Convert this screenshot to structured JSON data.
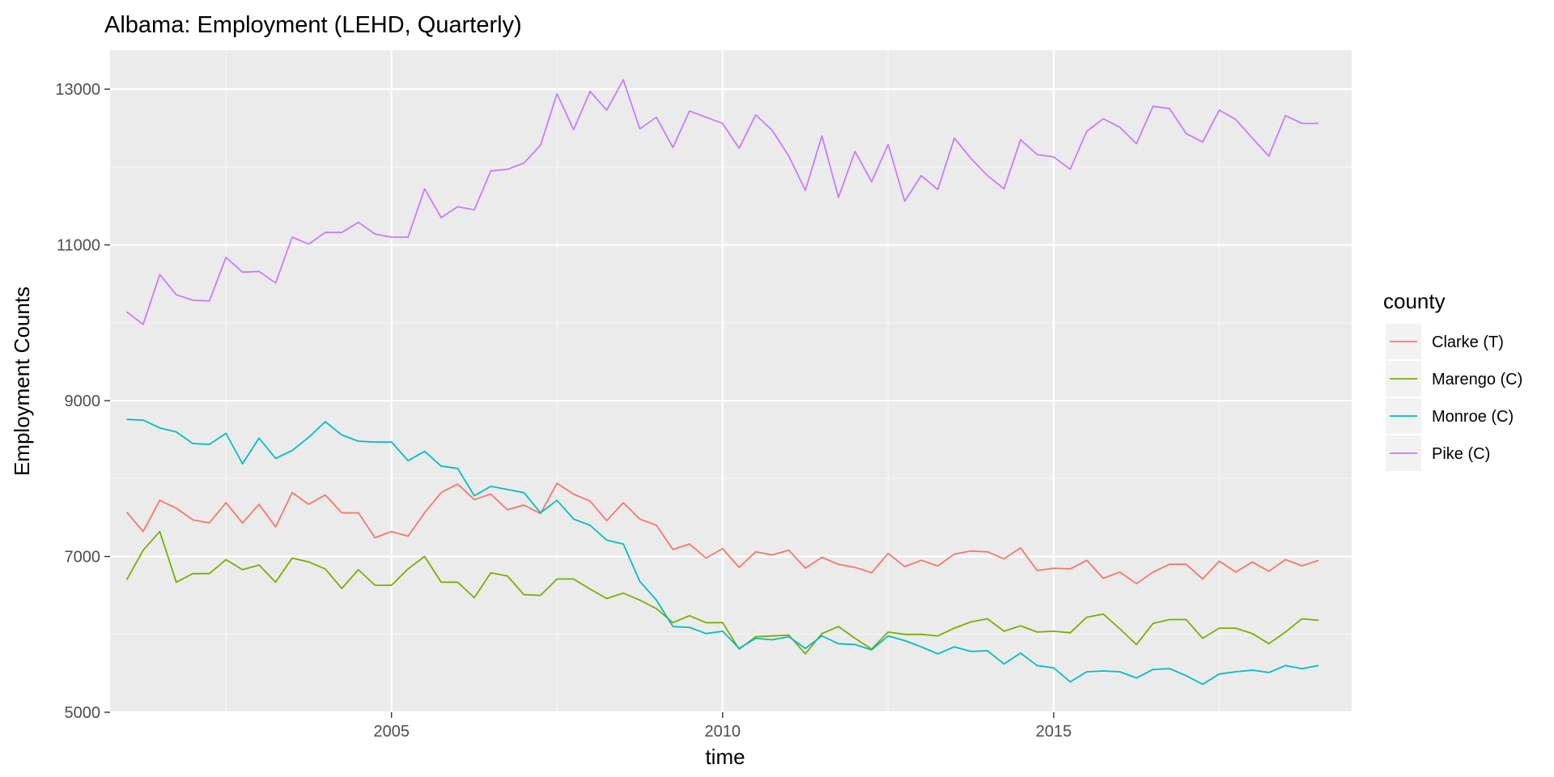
{
  "chart_data": {
    "type": "line",
    "title": "Albama: Employment (LEHD, Quarterly)",
    "xlabel": "time",
    "ylabel": "Employment Counts",
    "xlim": [
      2000.75,
      2019.5
    ],
    "ylim": [
      5000,
      13500
    ],
    "x_ticks": [
      2005,
      2010,
      2015
    ],
    "x_tick_labels": [
      "2005",
      "2010",
      "2015"
    ],
    "y_ticks": [
      5000,
      7000,
      9000,
      11000,
      13000
    ],
    "y_tick_labels": [
      "5000",
      "7000",
      "9000",
      "11000",
      "13000"
    ],
    "grid": true,
    "legend_title": "county",
    "legend_position": "right",
    "x": [
      2001.0,
      2001.25,
      2001.5,
      2001.75,
      2002.0,
      2002.25,
      2002.5,
      2002.75,
      2003.0,
      2003.25,
      2003.5,
      2003.75,
      2004.0,
      2004.25,
      2004.5,
      2004.75,
      2005.0,
      2005.25,
      2005.5,
      2005.75,
      2006.0,
      2006.25,
      2006.5,
      2006.75,
      2007.0,
      2007.25,
      2007.5,
      2007.75,
      2008.0,
      2008.25,
      2008.5,
      2008.75,
      2009.0,
      2009.25,
      2009.5,
      2009.75,
      2010.0,
      2010.25,
      2010.5,
      2010.75,
      2011.0,
      2011.25,
      2011.5,
      2011.75,
      2012.0,
      2012.25,
      2012.5,
      2012.75,
      2013.0,
      2013.25,
      2013.5,
      2013.75,
      2014.0,
      2014.25,
      2014.5,
      2014.75,
      2015.0,
      2015.25,
      2015.5,
      2015.75,
      2016.0,
      2016.25,
      2016.5,
      2016.75,
      2017.0,
      2017.25,
      2017.5,
      2017.75,
      2018.0,
      2018.25,
      2018.5,
      2018.75,
      2019.0
    ],
    "series": [
      {
        "name": "Clarke (T)",
        "color": "#F8766D",
        "values": [
          7570,
          7320,
          7720,
          7620,
          7470,
          7430,
          7690,
          7430,
          7670,
          7380,
          7820,
          7670,
          7790,
          7560,
          7560,
          7240,
          7320,
          7260,
          7560,
          7820,
          7930,
          7730,
          7800,
          7600,
          7660,
          7550,
          7940,
          7800,
          7710,
          7460,
          7690,
          7480,
          7400,
          7090,
          7160,
          6980,
          7100,
          6860,
          7060,
          7020,
          7080,
          6850,
          6990,
          6900,
          6860,
          6790,
          7040,
          6870,
          6950,
          6880,
          7030,
          7070,
          7060,
          6970,
          7110,
          6820,
          6850,
          6840,
          6950,
          6720,
          6800,
          6650,
          6800,
          6900,
          6900,
          6710,
          6940,
          6800,
          6930,
          6810,
          6960,
          6880,
          6950
        ]
      },
      {
        "name": "Marengo (C)",
        "color": "#7CAE00",
        "values": [
          6700,
          7080,
          7320,
          6670,
          6780,
          6780,
          6960,
          6830,
          6890,
          6670,
          6980,
          6930,
          6840,
          6590,
          6830,
          6630,
          6630,
          6840,
          7000,
          6670,
          6670,
          6470,
          6790,
          6750,
          6510,
          6500,
          6710,
          6710,
          6580,
          6460,
          6530,
          6440,
          6330,
          6150,
          6240,
          6150,
          6150,
          5810,
          5970,
          5980,
          5990,
          5750,
          6010,
          6100,
          5950,
          5810,
          6030,
          6000,
          6000,
          5980,
          6080,
          6160,
          6200,
          6040,
          6110,
          6030,
          6040,
          6020,
          6220,
          6260,
          6070,
          5870,
          6140,
          6190,
          6190,
          5950,
          6080,
          6080,
          6010,
          5880,
          6030,
          6200,
          6180
        ]
      },
      {
        "name": "Monroe (C)",
        "color": "#00BFC4",
        "values": [
          8760,
          8750,
          8650,
          8600,
          8450,
          8440,
          8580,
          8190,
          8520,
          8260,
          8360,
          8530,
          8730,
          8560,
          8480,
          8470,
          8470,
          8230,
          8350,
          8160,
          8130,
          7780,
          7900,
          7860,
          7820,
          7560,
          7720,
          7480,
          7400,
          7210,
          7160,
          6680,
          6440,
          6100,
          6090,
          6010,
          6040,
          5820,
          5950,
          5930,
          5970,
          5820,
          5980,
          5880,
          5870,
          5800,
          5980,
          5920,
          5840,
          5750,
          5840,
          5780,
          5790,
          5620,
          5760,
          5600,
          5570,
          5390,
          5520,
          5530,
          5520,
          5440,
          5550,
          5560,
          5470,
          5360,
          5490,
          5520,
          5540,
          5510,
          5600,
          5560,
          5600
        ]
      },
      {
        "name": "Pike (C)",
        "color": "#C77CFF",
        "values": [
          10140,
          9980,
          10620,
          10360,
          10290,
          10280,
          10840,
          10650,
          10660,
          10510,
          11100,
          11010,
          11160,
          11160,
          11290,
          11140,
          11100,
          11100,
          11720,
          11350,
          11490,
          11450,
          11950,
          11970,
          12050,
          12280,
          12940,
          12480,
          12970,
          12730,
          13120,
          12490,
          12640,
          12250,
          12720,
          12640,
          12560,
          12240,
          12670,
          12470,
          12140,
          11700,
          12400,
          11610,
          12200,
          11810,
          12290,
          11560,
          11890,
          11710,
          12370,
          12110,
          11890,
          11720,
          12350,
          12160,
          12130,
          11970,
          12460,
          12620,
          12510,
          12300,
          12780,
          12750,
          12430,
          12320,
          12730,
          12610,
          12370,
          12140,
          12660,
          12560,
          12560
        ]
      }
    ]
  }
}
